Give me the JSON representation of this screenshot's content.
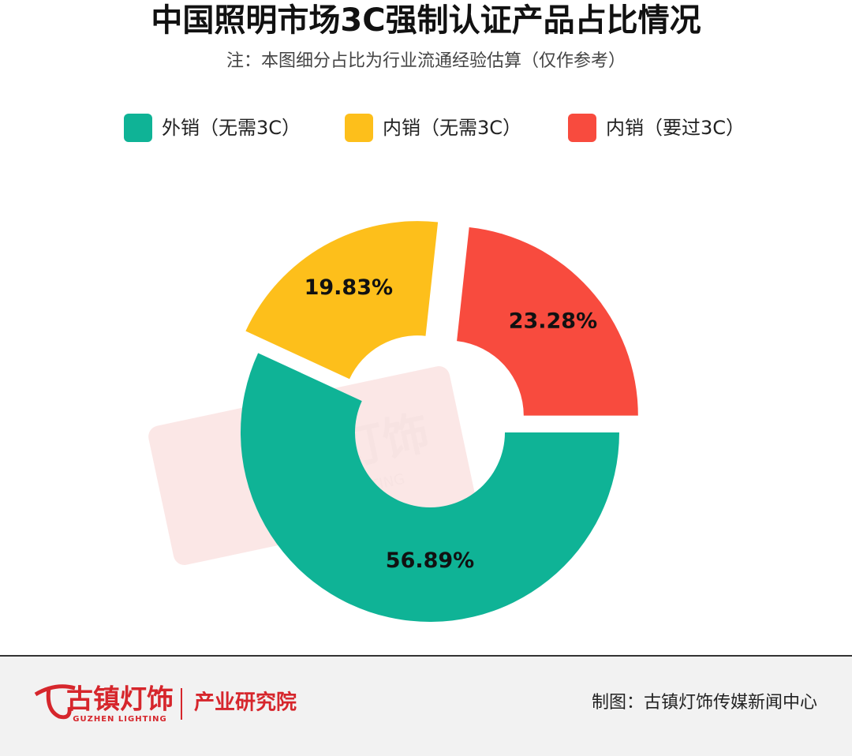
{
  "chart_data": {
    "type": "donut",
    "title": "中国照明市场3C强制认证产品占比情况",
    "subtitle": "注：本图细分占比为行业流通经验估算（仅作参考）",
    "categories": [
      "外销（无需3C）",
      "内销（无需3C）",
      "内销（要过3C）"
    ],
    "values": [
      56.89,
      19.83,
      23.28
    ],
    "value_labels": [
      "56.89%",
      "19.83%",
      "23.28%"
    ],
    "colors": [
      "#0fb396",
      "#fdbf1b",
      "#f84b3e"
    ],
    "legend": "top"
  },
  "footer": {
    "logo": "古镇灯饰",
    "logo_en": "GUZHEN LIGHTING",
    "institute": "产业研究院",
    "credit": "制图：古镇灯饰传媒新闻中心"
  }
}
